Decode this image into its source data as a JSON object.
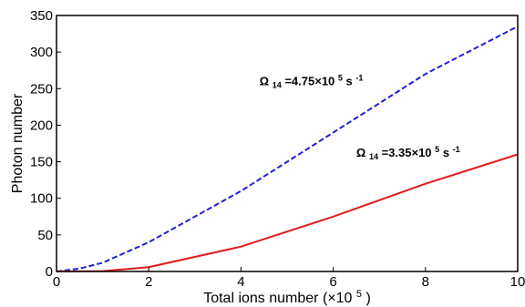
{
  "chart_data": {
    "type": "line",
    "xlabel": "Total ions number",
    "xlabel_unit_prefix": "(×10",
    "xlabel_unit_exp": "5",
    "xlabel_unit_suffix": ")",
    "ylabel": "Photon number",
    "xlim": [
      0,
      10
    ],
    "ylim": [
      0,
      350
    ],
    "xticks": [
      0,
      2,
      4,
      6,
      8,
      10
    ],
    "yticks": [
      0,
      50,
      100,
      150,
      200,
      250,
      300,
      350
    ],
    "grid": false,
    "legend": "none",
    "series": [
      {
        "color": "#1f1fd9",
        "style": "dashed",
        "x": [
          0,
          0.5,
          1,
          2,
          4,
          6,
          8,
          10
        ],
        "y": [
          0,
          4,
          12,
          40,
          110,
          190,
          270,
          335
        ]
      },
      {
        "color": "#e31a1c",
        "style": "solid",
        "x": [
          0,
          1,
          2,
          4,
          6,
          8,
          10
        ],
        "y": [
          0,
          0.5,
          6,
          34,
          75,
          120,
          160
        ]
      }
    ],
    "annotations": [
      {
        "symbol": "Ω",
        "subscript": "14",
        "value_text": "=4.75×10",
        "exp": "5",
        "unit": "s",
        "unit_exp": "-1",
        "at_x": 4.4,
        "at_y": 255
      },
      {
        "symbol": "Ω",
        "subscript": "14",
        "value_text": "=3.35×10",
        "exp": "5",
        "unit": "s",
        "unit_exp": "-1",
        "at_x": 6.5,
        "at_y": 157
      }
    ]
  }
}
